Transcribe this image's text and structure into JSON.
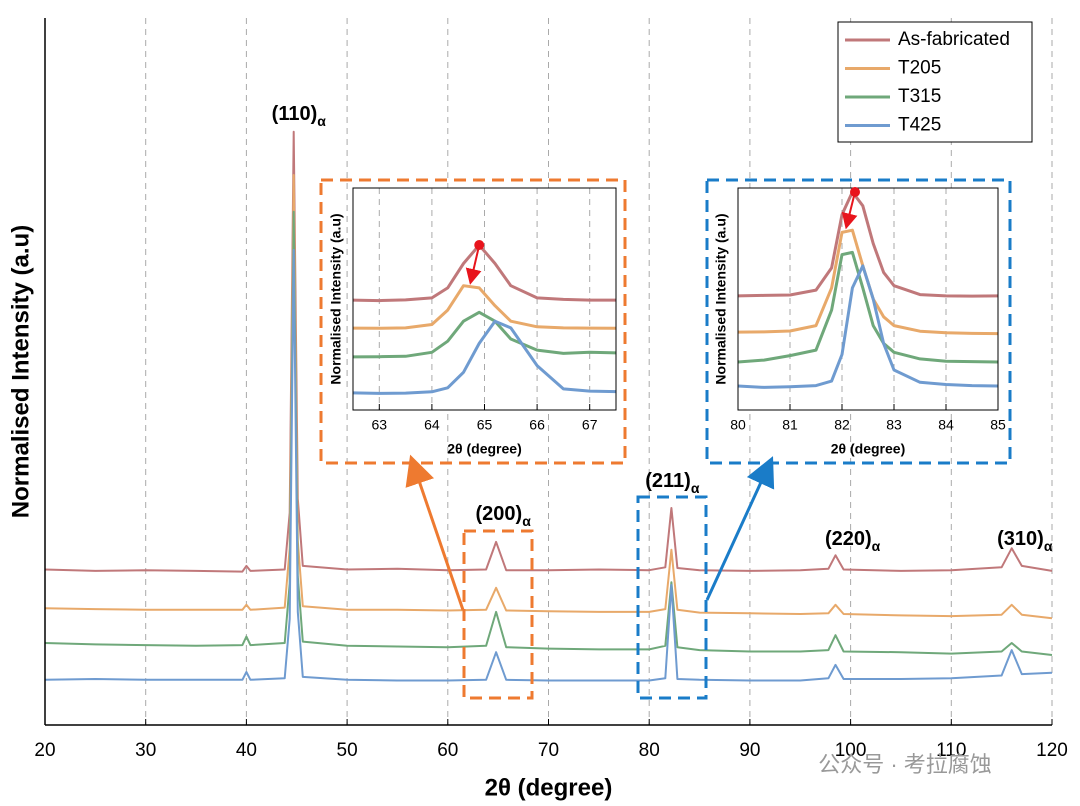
{
  "chart_data": [
    {
      "type": "line",
      "x_label": "2θ (degree)",
      "y_label": "Normalised Intensity (a.u)",
      "xlim": [
        20,
        120
      ],
      "xticks": [
        20,
        30,
        40,
        50,
        60,
        70,
        80,
        90,
        100,
        110,
        120
      ],
      "ylim": [
        0,
        100
      ],
      "grid": true,
      "legend": "upper right",
      "x": [
        20,
        25,
        30,
        35,
        39.6,
        40,
        40.4,
        43.8,
        44.3,
        44.7,
        45.1,
        45.6,
        50,
        55,
        60,
        63.8,
        64.8,
        65.8,
        70,
        75,
        80,
        81.6,
        82.2,
        82.8,
        85,
        90,
        95,
        97.8,
        98.5,
        99.3,
        105,
        110,
        115,
        116,
        117,
        120
      ],
      "series": [
        {
          "name": "As-fabricated",
          "color": "#c0787a",
          "values": [
            22.0,
            21.8,
            21.9,
            21.8,
            21.7,
            22.5,
            21.8,
            22.0,
            30,
            83.9,
            32,
            22.5,
            22.0,
            22.1,
            21.9,
            22.0,
            25.9,
            21.9,
            21.9,
            22.0,
            21.9,
            22.3,
            30.7,
            22.2,
            21.9,
            21.8,
            21.9,
            22.1,
            24.0,
            22.0,
            21.8,
            21.9,
            22.3,
            25.0,
            22.5,
            21.8
          ]
        },
        {
          "name": "T205",
          "color": "#e8a96a",
          "values": [
            16.5,
            16.4,
            16.3,
            16.3,
            16.3,
            17.0,
            16.3,
            16.6,
            25,
            77.8,
            26,
            16.8,
            16.3,
            16.3,
            16.2,
            16.3,
            19.4,
            16.2,
            16.1,
            16.0,
            16.0,
            16.4,
            24.8,
            16.3,
            15.9,
            15.8,
            15.7,
            15.8,
            17.0,
            15.7,
            15.5,
            15.4,
            15.6,
            17.0,
            15.6,
            15.1
          ]
        },
        {
          "name": "T315",
          "color": "#6fa87a",
          "values": [
            11.6,
            11.4,
            11.3,
            11.2,
            11.3,
            12.5,
            11.3,
            11.6,
            20,
            72.6,
            21,
            11.8,
            11.2,
            11.1,
            11.0,
            11.2,
            16.0,
            11.0,
            10.8,
            10.7,
            10.7,
            11.2,
            20.2,
            11.0,
            10.6,
            10.4,
            10.4,
            10.6,
            12.7,
            10.4,
            10.3,
            10.1,
            10.4,
            11.6,
            10.4,
            9.9
          ]
        },
        {
          "name": "T425",
          "color": "#6f9bd0",
          "values": [
            6.4,
            6.5,
            6.4,
            6.4,
            6.4,
            7.5,
            6.4,
            6.6,
            15,
            67.2,
            16,
            6.8,
            6.4,
            6.3,
            6.3,
            6.4,
            10.3,
            6.4,
            6.3,
            6.3,
            6.3,
            6.6,
            19.8,
            6.5,
            6.4,
            6.3,
            6.3,
            6.6,
            8.5,
            6.5,
            6.5,
            6.6,
            7.0,
            10.6,
            7.2,
            7.4
          ]
        }
      ],
      "annotations": [
        {
          "text": "(110)",
          "sub": "α",
          "x": 45.2,
          "y": 86.3
        },
        {
          "text": "(200)",
          "sub": "α",
          "x": 65.5,
          "y": 29.7
        },
        {
          "text": "(211)",
          "sub": "α",
          "x": 82.3,
          "y": 34.4
        },
        {
          "text": "(220)",
          "sub": "α",
          "x": 100.2,
          "y": 26.2
        },
        {
          "text": "(310)",
          "sub": "α",
          "x": 117.3,
          "y": 26.2
        }
      ]
    },
    {
      "type": "line",
      "x_label": "2θ (degree)",
      "y_label": "Normalised Intensity (a.u)",
      "xlim": [
        62.5,
        67.5
      ],
      "xticks": [
        63,
        64,
        65,
        66,
        67
      ],
      "ylim": [
        0,
        100
      ],
      "grid": true,
      "x": [
        62.5,
        63,
        63.5,
        64,
        64.3,
        64.6,
        64.9,
        65.2,
        65.5,
        66,
        66.5,
        67,
        67.5
      ],
      "series": [
        {
          "name": "As-fabricated",
          "color": "#c0787a",
          "values": [
            49.5,
            49.3,
            49.6,
            50.5,
            55,
            66,
            74.3,
            66,
            56,
            50.5,
            49.8,
            49.5,
            49.5
          ]
        },
        {
          "name": "T205",
          "color": "#e8a96a",
          "values": [
            36.9,
            36.8,
            37.0,
            38.5,
            45,
            56,
            55,
            47,
            40,
            37.5,
            37.0,
            36.9,
            36.8
          ]
        },
        {
          "name": "T315",
          "color": "#6fa87a",
          "values": [
            23.9,
            24.0,
            24.2,
            26,
            31,
            40,
            44,
            40,
            32,
            27,
            25.5,
            26,
            25.7
          ]
        },
        {
          "name": "T425",
          "color": "#6f9bd0",
          "values": [
            7.7,
            7.5,
            7.6,
            8.2,
            10,
            17,
            30,
            40,
            37,
            20,
            9.5,
            8.5,
            8.3
          ]
        }
      ],
      "peak_shift": {
        "from": [
          64.9,
          74.3
        ],
        "to": [
          64.75,
          59
        ],
        "color": "#e8141c"
      }
    },
    {
      "type": "line",
      "x_label": "2θ (degree)",
      "y_label": "Normalised Intensity (a.u)",
      "xlim": [
        80,
        85
      ],
      "xticks": [
        80,
        81,
        82,
        83,
        84,
        85
      ],
      "ylim": [
        0,
        100
      ],
      "grid": true,
      "x": [
        80,
        80.5,
        81,
        81.5,
        81.8,
        82,
        82.2,
        82.4,
        82.6,
        82.8,
        83,
        83.5,
        84,
        84.5,
        85
      ],
      "series": [
        {
          "name": "As-fabricated",
          "color": "#c0787a",
          "values": [
            51.4,
            51.6,
            51.8,
            54,
            64,
            88,
            98.2,
            92,
            75,
            62,
            56,
            52,
            51.4,
            51.3,
            51.4
          ]
        },
        {
          "name": "T205",
          "color": "#e8a96a",
          "values": [
            35.1,
            35.2,
            35.6,
            38,
            55,
            80,
            81,
            65,
            50,
            42,
            38,
            35.5,
            34.8,
            34.5,
            34.4
          ]
        },
        {
          "name": "T315",
          "color": "#6fa87a",
          "values": [
            21.6,
            22.5,
            24.5,
            27,
            45,
            70,
            71,
            55,
            38,
            30,
            26,
            23,
            22,
            21.8,
            21.6
          ]
        },
        {
          "name": "T425",
          "color": "#6f9bd0",
          "values": [
            10.8,
            10.2,
            10.5,
            11,
            13,
            25,
            55,
            64.9,
            50,
            30,
            18,
            12.5,
            11.5,
            11.0,
            10.8
          ]
        }
      ],
      "peak_shift": {
        "from": [
          82.25,
          98.2
        ],
        "to": [
          82.1,
          84
        ],
        "color": "#e8141c"
      }
    }
  ],
  "watermark": "公众号 · 考拉腐蚀"
}
